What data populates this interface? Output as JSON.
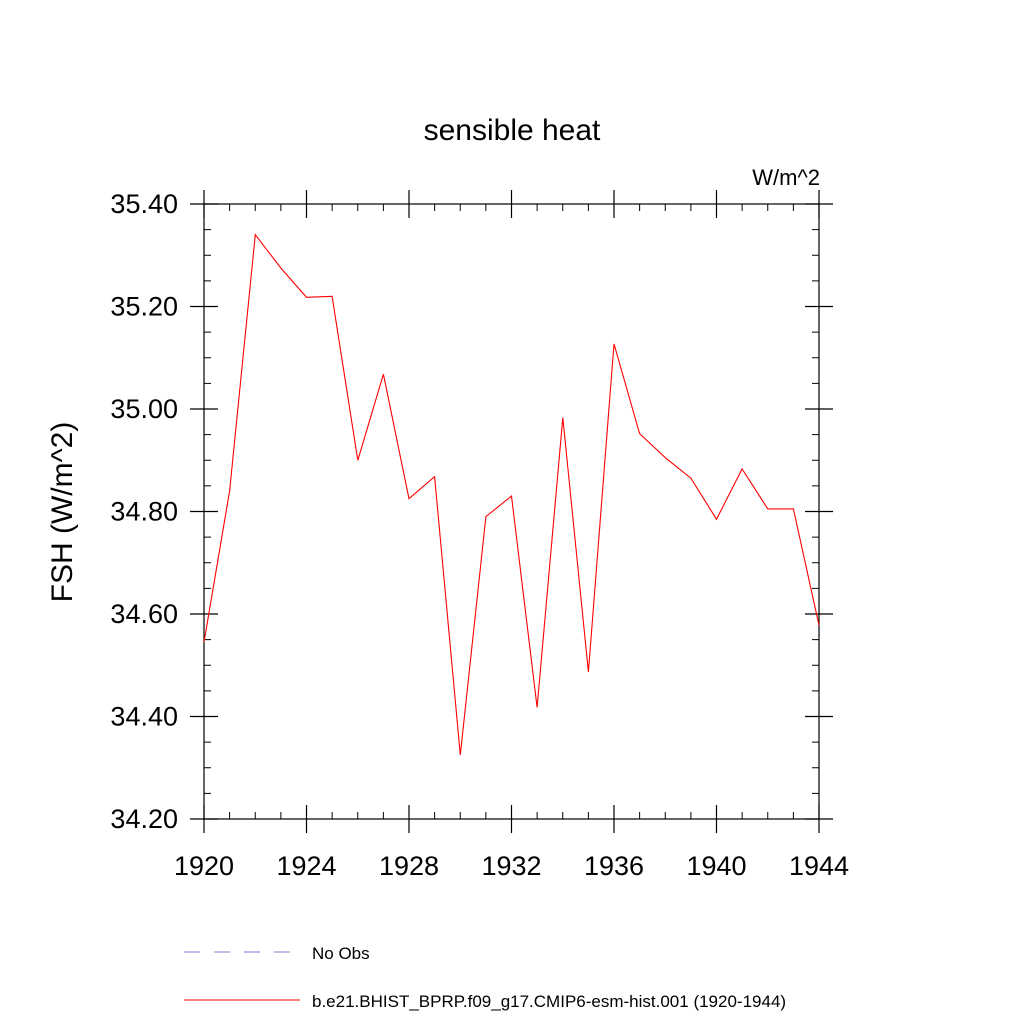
{
  "chart_data": {
    "type": "line",
    "title": "sensible heat",
    "units_label": "W/m^2",
    "ylabel": "FSH  (W/m^2)",
    "xlabel": "",
    "xlim": [
      1920,
      1944
    ],
    "ylim": [
      34.2,
      35.4
    ],
    "x_ticks": [
      "1920",
      "1924",
      "1928",
      "1932",
      "1936",
      "1940",
      "1944"
    ],
    "y_ticks": [
      "34.20",
      "34.40",
      "34.60",
      "34.80",
      "35.00",
      "35.20",
      "35.40"
    ],
    "grid": false,
    "legend_position": "bottom",
    "series": [
      {
        "name": "b.e21.BHIST_BPRP.f09_g17.CMIP6-esm-hist.001 (1920-1944)",
        "color": "#ff0000",
        "style": "solid",
        "x": [
          1920,
          1921,
          1922,
          1923,
          1924,
          1925,
          1926,
          1927,
          1928,
          1929,
          1930,
          1931,
          1932,
          1933,
          1934,
          1935,
          1936,
          1937,
          1938,
          1939,
          1940,
          1941,
          1942,
          1943,
          1944
        ],
        "y": [
          34.545,
          34.84,
          35.34,
          35.275,
          35.218,
          35.22,
          34.9,
          35.068,
          34.825,
          34.868,
          34.325,
          34.79,
          34.83,
          34.418,
          34.983,
          34.487,
          35.127,
          34.952,
          34.905,
          34.865,
          34.785,
          34.883,
          34.805,
          34.805,
          34.578
        ]
      }
    ],
    "legend": [
      {
        "label": "No Obs",
        "color": "#7b7bd6",
        "style": "dashed"
      },
      {
        "label": "b.e21.BHIST_BPRP.f09_g17.CMIP6-esm-hist.001 (1920-1944)",
        "color": "#ff0000",
        "style": "solid"
      }
    ]
  }
}
